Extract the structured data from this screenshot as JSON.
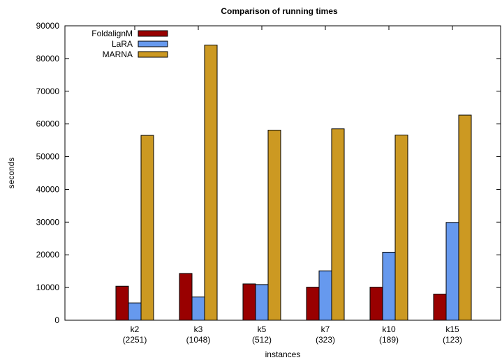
{
  "chart_data": {
    "type": "bar",
    "title": "Comparison of running times",
    "xlabel": "instances",
    "ylabel": "seconds",
    "ylim": [
      0,
      90000
    ],
    "yticks": [
      0,
      10000,
      20000,
      30000,
      40000,
      50000,
      60000,
      70000,
      80000,
      90000
    ],
    "grid": false,
    "legend_position": "top-left",
    "categories": [
      [
        "k2",
        "(2251)"
      ],
      [
        "k3",
        "(1048)"
      ],
      [
        "k5",
        "(512)"
      ],
      [
        "k7",
        "(323)"
      ],
      [
        "k10",
        "(189)"
      ],
      [
        "k15",
        "(123)"
      ]
    ],
    "series": [
      {
        "name": "FoldalignM",
        "color": "#990000",
        "values": [
          10400,
          14300,
          11100,
          10100,
          10100,
          8000
        ]
      },
      {
        "name": "LaRA",
        "color": "#6699ee",
        "values": [
          5300,
          7100,
          10900,
          15100,
          20800,
          29900
        ]
      },
      {
        "name": "MARNA",
        "color": "#cc9922",
        "values": [
          56500,
          84100,
          58100,
          58500,
          56600,
          62700
        ]
      }
    ]
  }
}
